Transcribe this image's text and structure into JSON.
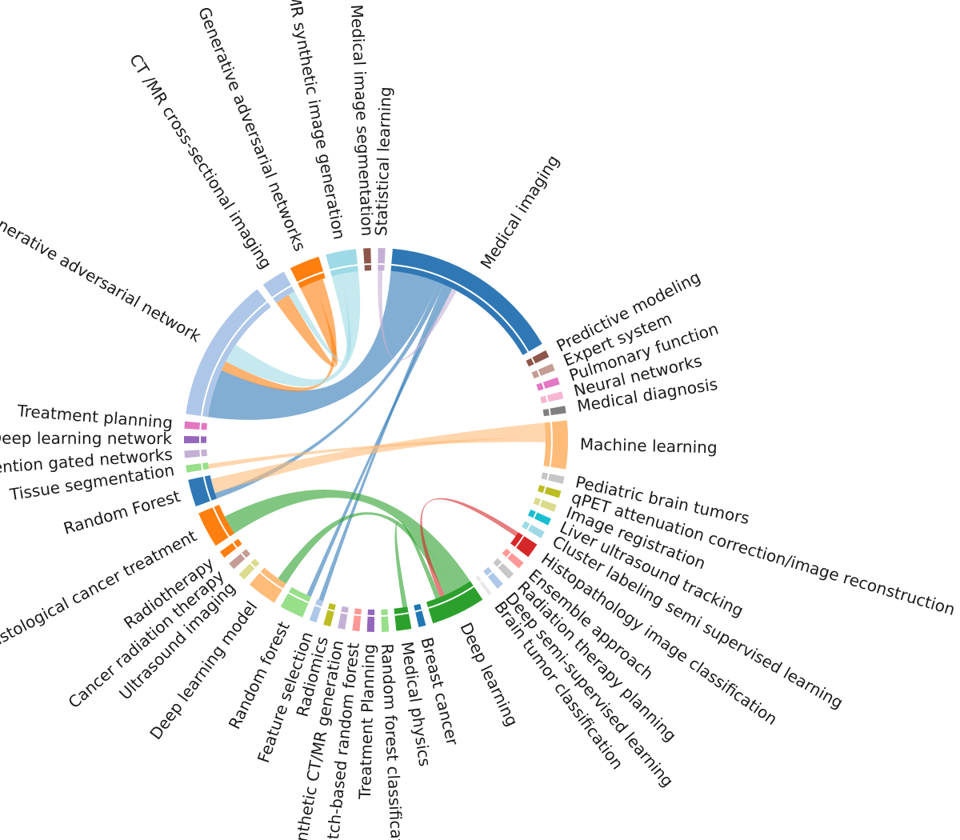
{
  "diagram": {
    "type": "chord",
    "nodes": [
      {
        "label": "Medical imaging",
        "color": "#2f78b5",
        "weight": 30
      },
      {
        "label": "Predictive modeling",
        "color": "#8c564b",
        "weight": 1.2
      },
      {
        "label": "Expert system",
        "color": "#c49c94",
        "weight": 1.2
      },
      {
        "label": "Pulmonary function",
        "color": "#e377c2",
        "weight": 1.2
      },
      {
        "label": "Neural networks",
        "color": "#f7b6d2",
        "weight": 1.2
      },
      {
        "label": "Medical diagnosis",
        "color": "#7f7f7f",
        "weight": 1.2
      },
      {
        "label": "Machine learning",
        "color": "#ffbb78",
        "weight": 8
      },
      {
        "label": "Pediatric brain tumors",
        "color": "#c7c7c7",
        "weight": 1.2
      },
      {
        "label": "qPET attenuation correction/image reconstruction",
        "color": "#bcbd22",
        "weight": 1.2
      },
      {
        "label": "Image registration",
        "color": "#dbdb8d",
        "weight": 1.2
      },
      {
        "label": "Liver ultrasound tracking",
        "color": "#17becf",
        "weight": 1.2
      },
      {
        "label": "Cluster labeling semi supervised learning",
        "color": "#9edae5",
        "weight": 1.2
      },
      {
        "label": "Histopathology image classification",
        "color": "#d62728",
        "weight": 2.5
      },
      {
        "label": "Ensemble approach",
        "color": "#ff9896",
        "weight": 1.2
      },
      {
        "label": "Radiation therapy planning",
        "color": "#c7c7c7",
        "weight": 1.2
      },
      {
        "label": "Deep semi-supervised learning",
        "color": "#aec7e8",
        "weight": 1.2
      },
      {
        "label": "Brain tumor classification",
        "color": "#ffffff",
        "weight": 0.6
      },
      {
        "label": "Deep learning",
        "color": "#2ca02c",
        "weight": 9
      },
      {
        "label": "Breast cancer",
        "color": "#1f77b4",
        "weight": 1.2
      },
      {
        "label": "Medical physics",
        "color": "#2ca02c",
        "weight": 2.5
      },
      {
        "label": "Random forest classification",
        "color": "#98df8a",
        "weight": 1.2
      },
      {
        "label": "Treatment Planning",
        "color": "#9467bd",
        "weight": 1.2
      },
      {
        "label": "Patch-based random forest",
        "color": "#ff9896",
        "weight": 1.2
      },
      {
        "label": "Synthetic CT/MR generation",
        "color": "#c5b0d5",
        "weight": 1.2
      },
      {
        "label": "Radiomics",
        "color": "#bcbd22",
        "weight": 1.2
      },
      {
        "label": "Feature selection",
        "color": "#aec7e8",
        "weight": 1.2
      },
      {
        "label": "Random forest",
        "color": "#98df8a",
        "weight": 4
      },
      {
        "label": "Deep learning model",
        "color": "#ffbb78",
        "weight": 5
      },
      {
        "label": "Ultrasound imaging",
        "color": "#dbdb8d",
        "weight": 1.2
      },
      {
        "label": "Cancer radiation therapy",
        "color": "#c49c94",
        "weight": 1.2
      },
      {
        "label": "Radiotherapy",
        "color": "#ff7f0e",
        "weight": 1.2
      },
      {
        "label": "Histological cancer treatment",
        "color": "#ff7f0e",
        "weight": 6
      },
      {
        "label": "Random Forest",
        "color": "#2f78b5",
        "weight": 4.5
      },
      {
        "label": "Tissue segmentation",
        "color": "#98df8a",
        "weight": 1.2
      },
      {
        "label": "Attention gated networks",
        "color": "#c5b0d5",
        "weight": 1.2
      },
      {
        "label": "Deep learning network",
        "color": "#9467bd",
        "weight": 1.2
      },
      {
        "label": "Treatment planning",
        "color": "#e377c2",
        "weight": 1.2
      },
      {
        "label": "Generative adversarial network",
        "color": "#aec7e8",
        "weight": 24
      },
      {
        "label": "CT /MR cross-sectional imaging",
        "color": "#aec7e8",
        "weight": 4
      },
      {
        "label": "Generative adversarial networks",
        "color": "#ff7f0e",
        "weight": 5
      },
      {
        "label": "CT/MR synthetic image generation",
        "color": "#9edae5",
        "weight": 5
      },
      {
        "label": "Medical image segmentation",
        "color": "#8c564b",
        "weight": 1.2
      },
      {
        "label": "Statistical learning",
        "color": "#c5b0d5",
        "weight": 1.2
      }
    ],
    "links": [
      {
        "source": "Medical imaging",
        "target": "Generative adversarial network",
        "value": 10
      },
      {
        "source": "Medical imaging",
        "target": "Random Forest",
        "value": 1.2
      },
      {
        "source": "Medical imaging",
        "target": "Feature selection",
        "value": 1
      },
      {
        "source": "Medical imaging",
        "target": "Random forest",
        "value": 1
      },
      {
        "source": "Machine learning",
        "target": "Random Forest",
        "value": 3
      },
      {
        "source": "Machine learning",
        "target": "Tissue segmentation",
        "value": 1
      },
      {
        "source": "Deep learning",
        "target": "Histological cancer treatment",
        "value": 4
      },
      {
        "source": "Deep learning",
        "target": "Deep learning model",
        "value": 2
      },
      {
        "source": "Generative adversarial networks",
        "target": "CT /MR cross-sectional imaging",
        "value": 3
      },
      {
        "source": "Generative adversarial networks",
        "target": "Generative adversarial network",
        "value": 2
      },
      {
        "source": "CT/MR synthetic image generation",
        "target": "CT /MR cross-sectional imaging",
        "value": 2
      },
      {
        "source": "CT/MR synthetic image generation",
        "target": "Generative adversarial network",
        "value": 4
      },
      {
        "source": "Statistical learning",
        "target": "Medical imaging",
        "value": 1
      },
      {
        "source": "Histopathology image classification",
        "target": "Deep learning",
        "value": 1
      },
      {
        "source": "Medical physics",
        "target": "Deep learning",
        "value": 1
      }
    ]
  }
}
